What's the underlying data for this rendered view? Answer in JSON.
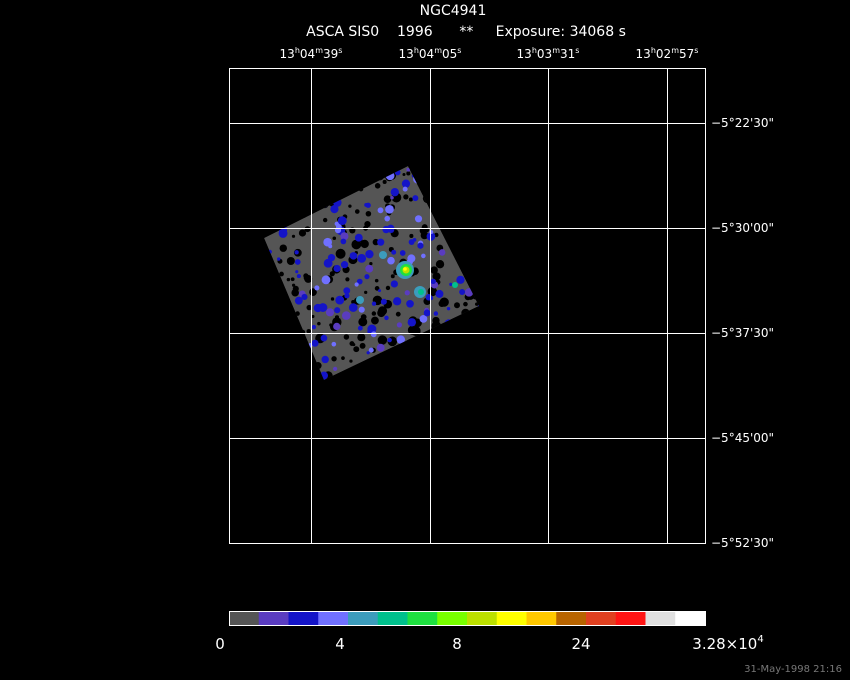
{
  "header": {
    "title": "NGC4941",
    "subtitle": "ASCA SIS0    1996      **     Exposure: 34068 s"
  },
  "ra_labels": [
    [
      "13",
      "h",
      "04",
      "m",
      "39",
      "s"
    ],
    [
      "13",
      "h",
      "04",
      "m",
      "05",
      "s"
    ],
    [
      "13",
      "h",
      "03",
      "m",
      "31",
      "s"
    ],
    [
      "13",
      "h",
      "02",
      "m",
      "57",
      "s"
    ]
  ],
  "dec_labels": [
    "−5°22'30\"",
    "−5°30'00\"",
    "−5°37'30\"",
    "−5°45'00\"",
    "−5°52'30\""
  ],
  "colorbar": {
    "colors": [
      "#555555",
      "#5a3cc0",
      "#1414c8",
      "#7070ff",
      "#3c9cbc",
      "#00c08c",
      "#1ee040",
      "#78ff00",
      "#bce000",
      "#ffff00",
      "#ffc800",
      "#b86400",
      "#e04020",
      "#ff1414",
      "#e0e0e0",
      "#ffffff"
    ],
    "labels": [
      [
        "0"
      ],
      [
        "4"
      ],
      [
        "8"
      ],
      [
        "24"
      ],
      [
        "3.28×10",
        "4"
      ]
    ]
  },
  "footer": {
    "timestamp": "31-May-1998 21:16"
  }
}
